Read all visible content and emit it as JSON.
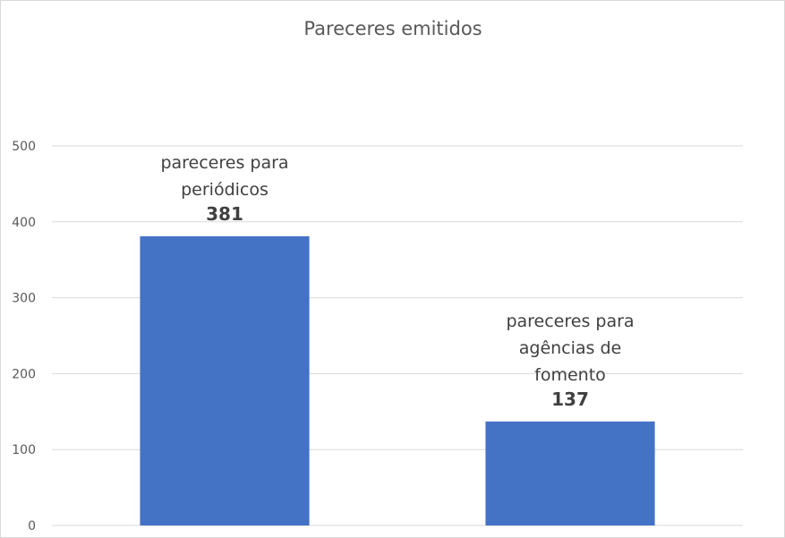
{
  "chart_data": {
    "type": "bar",
    "title": "Pareceres emitidos",
    "categories": [
      "pareceres para periódicos",
      "pareceres para agências de fomento"
    ],
    "label_lines": [
      [
        "pareceres para",
        "periódicos"
      ],
      [
        "pareceres para",
        "agências de",
        "fomento"
      ]
    ],
    "values": [
      381,
      137
    ],
    "ylim": [
      0,
      500
    ],
    "yticks": [
      0,
      100,
      200,
      300,
      400,
      500
    ],
    "grid": true,
    "legend": "none",
    "bar_color": "#4472c4",
    "grid_color": "#d9d9d9"
  }
}
